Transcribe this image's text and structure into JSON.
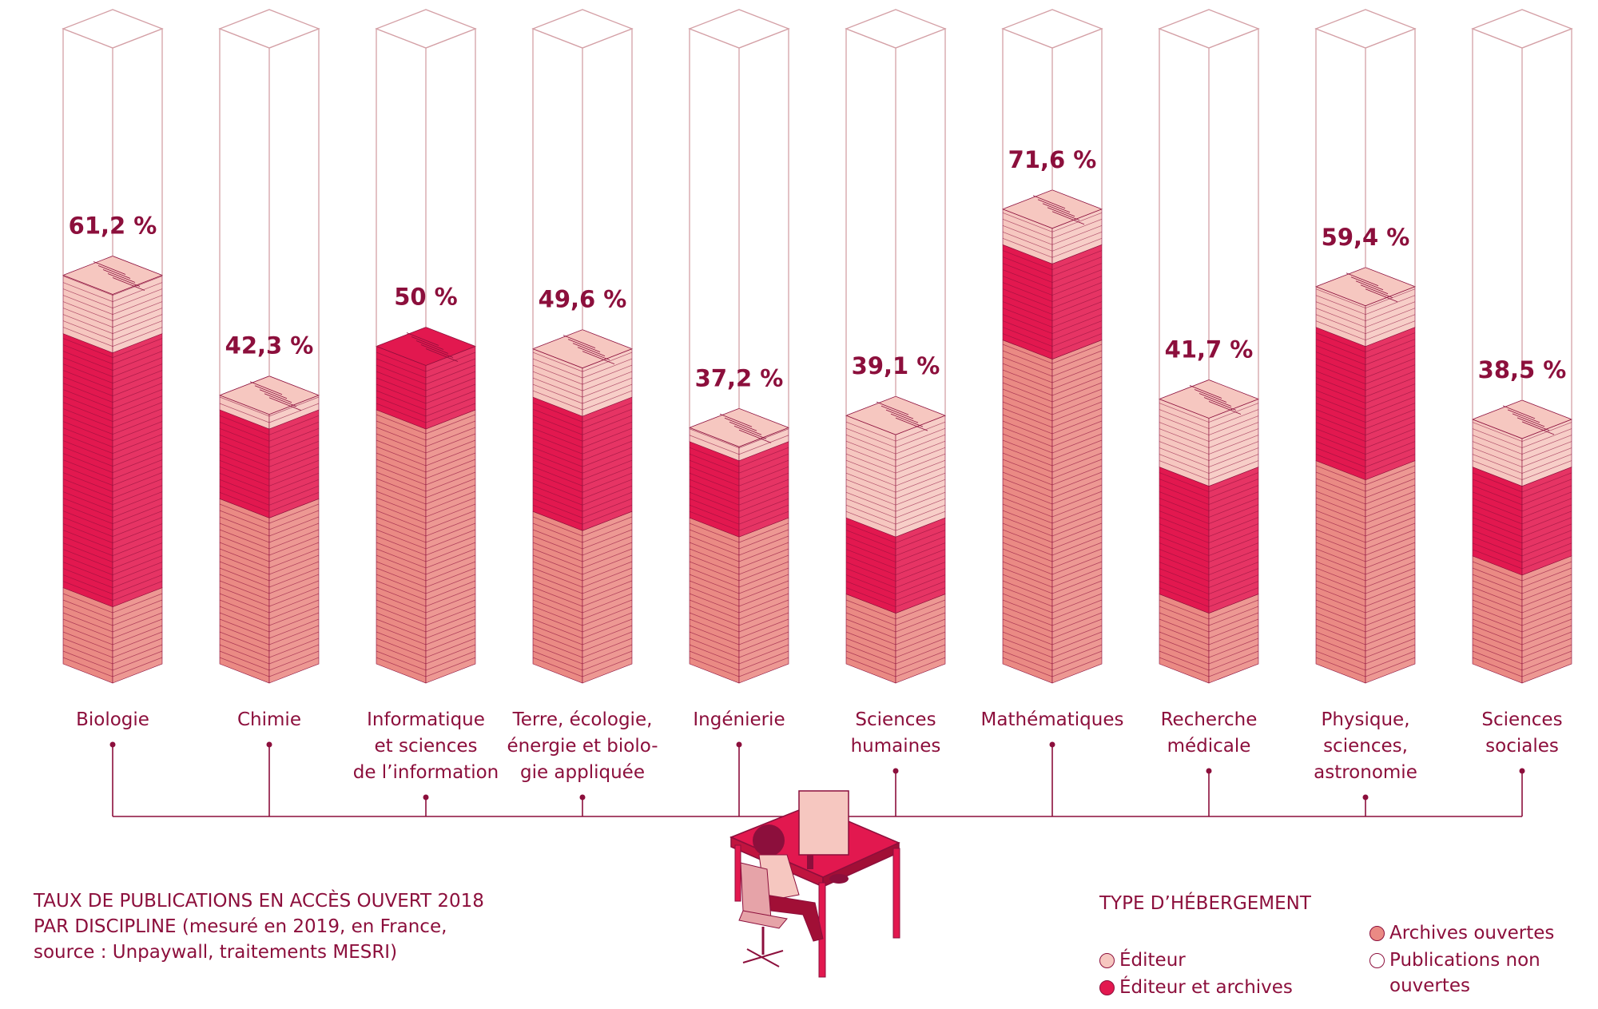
{
  "chart_data": {
    "type": "bar",
    "stacked": true,
    "title": "",
    "xlabel": "",
    "ylabel": "",
    "ylim": [
      0,
      100
    ],
    "categories": [
      [
        "Biologie"
      ],
      [
        "Chimie"
      ],
      [
        "Informatique",
        "et sciences",
        "de l’information"
      ],
      [
        "Terre, écologie,",
        "énergie et biolo-",
        "gie appliquée"
      ],
      [
        "Ingénierie"
      ],
      [
        "Sciences",
        "humaines"
      ],
      [
        "Mathématiques"
      ],
      [
        "Recherche",
        "médicale"
      ],
      [
        "Physique,",
        "sciences,",
        "astronomie"
      ],
      [
        "Sciences",
        "sociales"
      ]
    ],
    "totals": [
      61.2,
      42.3,
      50,
      49.6,
      37.2,
      39.1,
      71.6,
      41.7,
      59.4,
      38.5
    ],
    "total_labels": [
      "61,2 %",
      "42,3 %",
      "50 %",
      "49,6 %",
      "37,2 %",
      "39,1 %",
      "71,6 %",
      "41,7 %",
      "59,4 %",
      "38,5 %"
    ],
    "series": [
      {
        "name": "Archives ouvertes",
        "values": [
          12,
          26,
          40,
          24,
          23,
          11,
          51,
          11,
          32,
          17
        ]
      },
      {
        "name": "Éditeur et archives",
        "values": [
          40,
          14,
          10,
          18,
          12,
          12,
          15,
          20,
          21,
          14
        ]
      },
      {
        "name": "Éditeur",
        "values": [
          9.2,
          2.3,
          0,
          7.6,
          2.2,
          16.1,
          5.6,
          10.7,
          6.4,
          7.5
        ]
      }
    ]
  },
  "caption": {
    "line1": "TAUX DE PUBLICATIONS EN ACCÈS OUVERT 2018",
    "line2": "PAR DISCIPLINE (mesuré en 2019, en France,",
    "line3": "source : Unpaywall,  traitements MESRI)"
  },
  "legend": {
    "title": "TYPE D’HÉBERGEMENT",
    "items": [
      {
        "label": "Éditeur",
        "color": "#f6c7c0"
      },
      {
        "label": "Éditeur et archives",
        "color": "#e2184f"
      },
      {
        "label": "Archives ouvertes",
        "color": "#ea8a84"
      },
      {
        "label": "Publications non ouvertes",
        "color": "#ffffff"
      }
    ]
  },
  "colors": {
    "text": "#8c0f3c",
    "editeur": "#f6c7c0",
    "editeur_archives": "#e2184f",
    "archives": "#ea8a84",
    "outline": "#d4a0a6"
  }
}
